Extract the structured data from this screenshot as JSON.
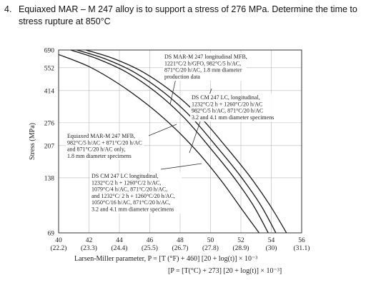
{
  "question": {
    "number": "4.",
    "line1": "Equiaxed MAR – M 247 alloy is to support a stress of 276 MPa. Determine the time to",
    "line2": "stress rupture at 850°C"
  },
  "chart_data": {
    "type": "line",
    "ylabel": "Stress (MPa)",
    "yscale": "log",
    "y_ticks": [
      690,
      552,
      414,
      276,
      207,
      138,
      69
    ],
    "ylim": [
      69,
      690
    ],
    "xlim": [
      40,
      56
    ],
    "x_ticks": [
      {
        "value": 40,
        "top": "40",
        "bottom": "(22.2)"
      },
      {
        "value": 42,
        "top": "42",
        "bottom": "(23.3)"
      },
      {
        "value": 44,
        "top": "44",
        "bottom": "(24.4)"
      },
      {
        "value": 46,
        "top": "46",
        "bottom": "(25.5)"
      },
      {
        "value": 48,
        "top": "48",
        "bottom": "(26.7)"
      },
      {
        "value": 50,
        "top": "50",
        "bottom": "(27.8)"
      },
      {
        "value": 52,
        "top": "52",
        "bottom": "(28.9)"
      },
      {
        "value": 54,
        "top": "54",
        "bottom": "(30)"
      },
      {
        "value": 56,
        "top": "56",
        "bottom": "(31.1)"
      }
    ],
    "xlabel": "Larsen-Miller parameter, P = [T (°F) + 460] [20 + log(t)] × 10⁻³",
    "xlabel2": "[P = [T(°C) + 273] [20 + log(t)] × 10⁻³]",
    "grid": true,
    "series": [
      {
        "x": [
          40.8,
          42.5,
          44.5,
          46.5,
          48.3,
          50,
          51.5,
          52.8,
          53.8
        ],
        "y": [
          690,
          620,
          520,
          400,
          292,
          200,
          140,
          98,
          69
        ]
      },
      {
        "x": [
          41.2,
          43.0,
          45.0,
          47.0,
          48.8,
          50.5,
          52.0,
          53.3,
          54.3
        ],
        "y": [
          690,
          620,
          520,
          400,
          292,
          200,
          140,
          98,
          69
        ]
      },
      {
        "x": [
          41.8,
          43.6,
          45.6,
          47.6,
          49.4,
          51.1,
          52.6,
          53.9,
          55.0
        ],
        "y": [
          690,
          620,
          520,
          400,
          292,
          200,
          140,
          98,
          69
        ]
      },
      {
        "x": [
          40.0,
          42.0,
          44.0,
          46.0,
          47.7,
          49.3,
          50.8,
          52.1,
          53.2
        ],
        "y": [
          652,
          560,
          448,
          339,
          255,
          185,
          130,
          92,
          69
        ]
      }
    ],
    "annotations": [
      {
        "lines": [
          "DS MAR-M 247 longitudinal MFB,",
          "1221°C/2 h/GFO, 982°C/5 h/AC,",
          "871°C/20 h/AC, 1.8 mm diameter",
          "production data"
        ]
      },
      {
        "lines": [
          "DS CM 247 LC, longitudinal,",
          "1232°C/2 h + 1260°C/20 h/AC",
          "982°C/5 h/AC, 871°C/20 h/AC",
          "3.2 and 4.1 mm diameter specimens"
        ]
      },
      {
        "lines": [
          "Equiaxed MAR-M 247 MFB,",
          "982°C/5 h/AC + 871°C/20 h/AC",
          "and 871°C/20 h/AC only,",
          "1.8 mm diameter specimens"
        ]
      },
      {
        "lines": [
          "DS CM 247 LC longitudinal,",
          "1232°C/2 h + 1260°C/2 h/AC,",
          "1079°C/4 h/AC, 871°C/20 h/AC,",
          "and 1232°C/ 2 h + 1260°C/20 h/AC,",
          "1050°C/16 h/AC, 871°C/20 h/AC,",
          "3.2 and 4.1 mm diameter specimens"
        ]
      }
    ]
  }
}
